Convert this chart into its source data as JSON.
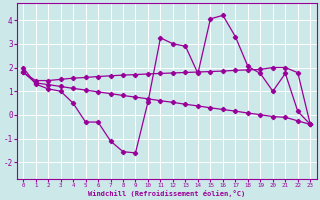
{
  "xlabel": "Windchill (Refroidissement éolien,°C)",
  "bg_color": "#cce8e8",
  "grid_color": "#ffffff",
  "line_color": "#990099",
  "xlim": [
    -0.5,
    23.5
  ],
  "ylim": [
    -2.7,
    4.7
  ],
  "yticks": [
    -2,
    -1,
    0,
    1,
    2,
    3,
    4
  ],
  "xticks": [
    0,
    1,
    2,
    3,
    4,
    5,
    6,
    7,
    8,
    9,
    10,
    11,
    12,
    13,
    14,
    15,
    16,
    17,
    18,
    19,
    20,
    21,
    22,
    23
  ],
  "line1_x": [
    0,
    1,
    2,
    3,
    4,
    5,
    6,
    7,
    8,
    9,
    10,
    11,
    12,
    13,
    14,
    15,
    16,
    17,
    18,
    19,
    20,
    21,
    22,
    23
  ],
  "line1_y": [
    2.0,
    1.3,
    1.1,
    1.0,
    0.5,
    -0.3,
    -0.3,
    -1.1,
    -1.55,
    -1.6,
    0.55,
    3.25,
    3.0,
    2.9,
    1.75,
    4.05,
    4.2,
    3.3,
    2.05,
    1.75,
    1.0,
    1.75,
    0.15,
    -0.4
  ],
  "line2_x": [
    0,
    1,
    2,
    3,
    4,
    5,
    6,
    7,
    8,
    9,
    10,
    11,
    12,
    13,
    14,
    15,
    16,
    17,
    18,
    19,
    20,
    21,
    22,
    23
  ],
  "line2_y": [
    1.8,
    1.45,
    1.45,
    1.5,
    1.55,
    1.58,
    1.62,
    1.65,
    1.68,
    1.7,
    1.73,
    1.75,
    1.77,
    1.79,
    1.81,
    1.83,
    1.85,
    1.88,
    1.9,
    1.92,
    2.0,
    2.0,
    1.78,
    -0.4
  ],
  "line3_x": [
    0,
    1,
    2,
    3,
    4,
    5,
    6,
    7,
    8,
    9,
    10,
    11,
    12,
    13,
    14,
    15,
    16,
    17,
    18,
    19,
    20,
    21,
    22,
    23
  ],
  "line3_y": [
    1.8,
    1.35,
    1.28,
    1.2,
    1.12,
    1.05,
    0.97,
    0.9,
    0.82,
    0.75,
    0.68,
    0.6,
    0.53,
    0.45,
    0.38,
    0.3,
    0.23,
    0.16,
    0.08,
    0.01,
    -0.07,
    -0.1,
    -0.25,
    -0.4
  ]
}
